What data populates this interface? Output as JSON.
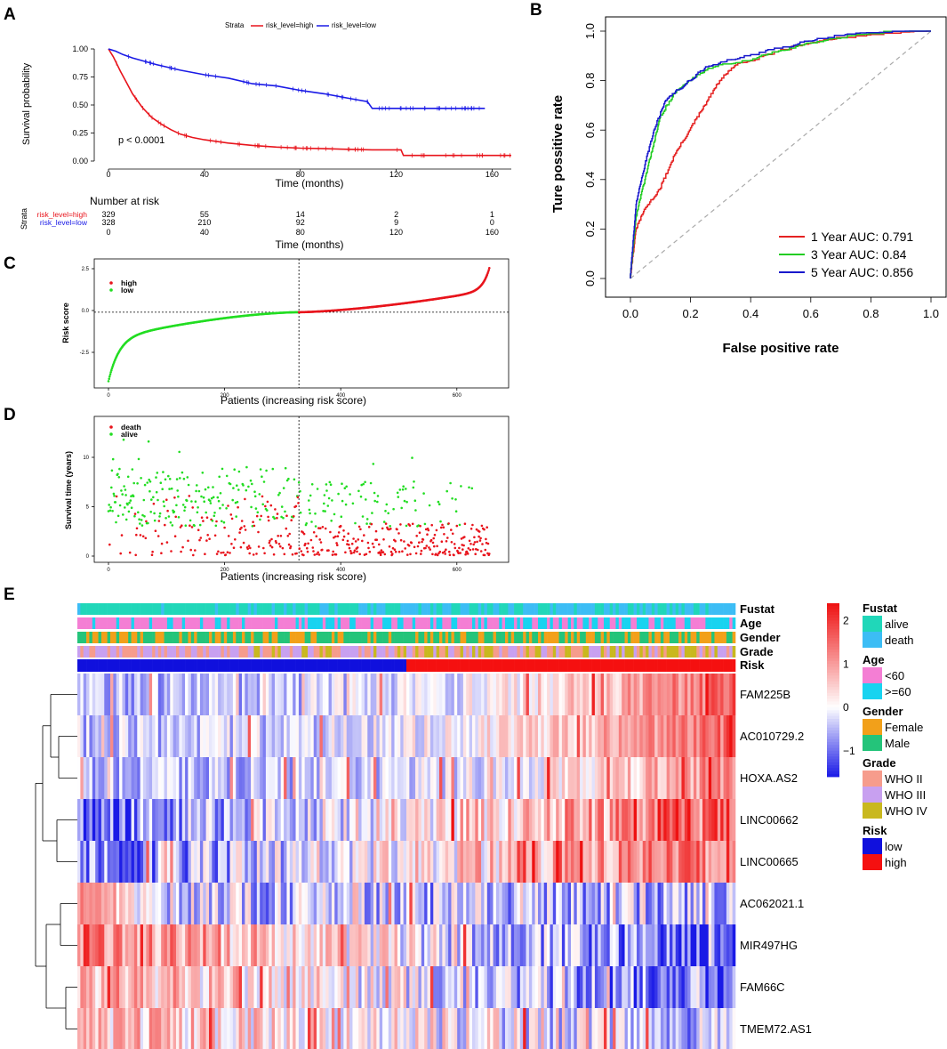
{
  "panel_labels": {
    "a": "A",
    "b": "B",
    "c": "C",
    "d": "D",
    "e": "E"
  },
  "colors": {
    "high": "#e8141c",
    "low": "#1a1ae6",
    "green": "#22dd22",
    "roc_1": "#e52222",
    "roc_3": "#22cc22",
    "roc_5": "#1818cc",
    "diag": "#aaaaaa",
    "hm_high": "#ee1111",
    "hm_mid": "#ffffff",
    "hm_low": "#1a1ae6"
  },
  "chart_data": [
    {
      "id": "A",
      "type": "line",
      "title": "",
      "legend_title": "Strata",
      "legend_position": "top",
      "xlabel": "Time (months)",
      "ylabel": "Survival probability",
      "xlim": [
        0,
        168
      ],
      "ylim": [
        0,
        1
      ],
      "x_ticks": [
        "0",
        "40",
        "80",
        "120",
        "160"
      ],
      "y_ticks": [
        "0.00",
        "0.25",
        "0.50",
        "0.75",
        "1.00"
      ],
      "annotation": "p < 0.0001",
      "series": [
        {
          "name": "risk_level=high",
          "x": [
            0,
            2,
            5,
            8,
            10,
            14,
            18,
            22,
            26,
            30,
            35,
            40,
            50,
            60,
            70,
            80,
            90,
            100,
            110,
            122,
            123,
            140,
            160,
            168
          ],
          "values": [
            1.0,
            0.93,
            0.8,
            0.68,
            0.6,
            0.48,
            0.39,
            0.33,
            0.28,
            0.24,
            0.21,
            0.19,
            0.16,
            0.14,
            0.125,
            0.115,
            0.11,
            0.105,
            0.1,
            0.1,
            0.05,
            0.05,
            0.05,
            0.05
          ]
        },
        {
          "name": "risk_level=low",
          "x": [
            0,
            3,
            6,
            10,
            15,
            20,
            30,
            40,
            50,
            60,
            70,
            80,
            90,
            100,
            108,
            110,
            120,
            140,
            157
          ],
          "values": [
            1.0,
            0.98,
            0.95,
            0.92,
            0.89,
            0.86,
            0.81,
            0.77,
            0.74,
            0.69,
            0.67,
            0.63,
            0.6,
            0.56,
            0.53,
            0.47,
            0.47,
            0.47,
            0.47
          ]
        }
      ]
    },
    {
      "id": "A-risk-table",
      "type": "table",
      "title": "Number at risk",
      "row_header": "Strata",
      "xlabel": "Time (months)",
      "x_ticks": [
        "0",
        "40",
        "80",
        "120",
        "160"
      ],
      "rows": [
        {
          "name": "risk_level=high",
          "values": [
            "329",
            "55",
            "14",
            "2",
            "1"
          ]
        },
        {
          "name": "risk_level=low",
          "values": [
            "328",
            "210",
            "92",
            "9",
            "0"
          ]
        }
      ]
    },
    {
      "id": "B",
      "type": "line",
      "xlabel": "False positive rate",
      "ylabel": "Ture possitive rate",
      "xlim": [
        0,
        1
      ],
      "ylim": [
        0,
        1
      ],
      "x_ticks": [
        "0.0",
        "0.2",
        "0.4",
        "0.6",
        "0.8",
        "1.0"
      ],
      "y_ticks": [
        "0.0",
        "0.2",
        "0.4",
        "0.6",
        "0.8",
        "1.0"
      ],
      "legend_position": "bottom-right",
      "series": [
        {
          "name": "1 Year AUC: 0.791",
          "x": [
            0,
            0.02,
            0.05,
            0.1,
            0.15,
            0.2,
            0.25,
            0.3,
            0.35,
            0.4,
            0.5,
            0.6,
            0.7,
            0.8,
            1.0
          ],
          "values": [
            0,
            0.2,
            0.28,
            0.36,
            0.5,
            0.6,
            0.7,
            0.8,
            0.86,
            0.88,
            0.92,
            0.95,
            0.97,
            0.98,
            1.0
          ]
        },
        {
          "name": "3 Year AUC: 0.84",
          "x": [
            0,
            0.02,
            0.05,
            0.08,
            0.1,
            0.15,
            0.2,
            0.25,
            0.3,
            0.4,
            0.5,
            0.6,
            0.7,
            0.8,
            1.0
          ],
          "values": [
            0,
            0.25,
            0.4,
            0.55,
            0.65,
            0.75,
            0.8,
            0.84,
            0.86,
            0.88,
            0.92,
            0.95,
            0.97,
            0.99,
            1.0
          ]
        },
        {
          "name": "5 Year AUC: 0.856",
          "x": [
            0,
            0.02,
            0.05,
            0.08,
            0.12,
            0.15,
            0.2,
            0.25,
            0.3,
            0.4,
            0.5,
            0.6,
            0.7,
            0.8,
            1.0
          ],
          "values": [
            0,
            0.3,
            0.46,
            0.6,
            0.72,
            0.75,
            0.8,
            0.85,
            0.87,
            0.9,
            0.93,
            0.96,
            0.98,
            0.99,
            1.0
          ]
        }
      ]
    },
    {
      "id": "C",
      "type": "scatter",
      "xlabel": "Patients (increasing risk score)",
      "ylabel": "Risk score",
      "xlim": [
        0,
        657
      ],
      "ylim": [
        -4.5,
        3.2
      ],
      "x_ticks": [
        "0",
        "200",
        "400",
        "600"
      ],
      "y_ticks": [
        "-2.5",
        "0.0",
        "2.5"
      ],
      "cutoff_index": 328,
      "cutoff_value": -0.1,
      "n": 657,
      "series": [
        {
          "name": "high"
        },
        {
          "name": "low"
        }
      ]
    },
    {
      "id": "D",
      "type": "scatter",
      "xlabel": "Patients (increasing risk score)",
      "ylabel": "Survival time (years)",
      "xlim": [
        0,
        657
      ],
      "ylim": [
        0,
        14
      ],
      "x_ticks": [
        "0",
        "200",
        "400",
        "600"
      ],
      "y_ticks": [
        "0",
        "5",
        "10"
      ],
      "cutoff_index": 328,
      "n": 657,
      "series": [
        {
          "name": "death"
        },
        {
          "name": "alive"
        }
      ]
    },
    {
      "id": "E",
      "type": "heatmap",
      "annotation_rows": [
        "Fustat",
        "Age",
        "Gender",
        "Grade",
        "Risk"
      ],
      "genes": [
        "FAM225B",
        "AC010729.2",
        "HOXA.AS2",
        "LINC00662",
        "LINC00665",
        "AC062021.1",
        "MIR497HG",
        "FAM66C",
        "TMEM72.AS1"
      ],
      "colorbar_ticks": [
        "2",
        "1",
        "0",
        "−1"
      ],
      "colorbar_range": [
        -1.6,
        2.4
      ],
      "n_samples": 657,
      "low_fraction": 0.5,
      "legend": [
        {
          "title": "Fustat",
          "items": [
            {
              "label": "alive",
              "color": "#20d7b9"
            },
            {
              "label": "death",
              "color": "#3cbdf5"
            }
          ]
        },
        {
          "title": "Age",
          "items": [
            {
              "label": "<60",
              "color": "#f47ed4"
            },
            {
              "label": ">=60",
              "color": "#18d3f0"
            }
          ]
        },
        {
          "title": "Gender",
          "items": [
            {
              "label": "Female",
              "color": "#f2a01a"
            },
            {
              "label": "Male",
              "color": "#24c47a"
            }
          ]
        },
        {
          "title": "Grade",
          "items": [
            {
              "label": "WHO II",
              "color": "#f69c8c"
            },
            {
              "label": "WHO III",
              "color": "#c8a0f0"
            },
            {
              "label": "WHO IV",
              "color": "#c9b81e"
            }
          ]
        },
        {
          "title": "Risk",
          "items": [
            {
              "label": "low",
              "color": "#1010dd"
            },
            {
              "label": "high",
              "color": "#f51010"
            }
          ]
        }
      ]
    }
  ]
}
